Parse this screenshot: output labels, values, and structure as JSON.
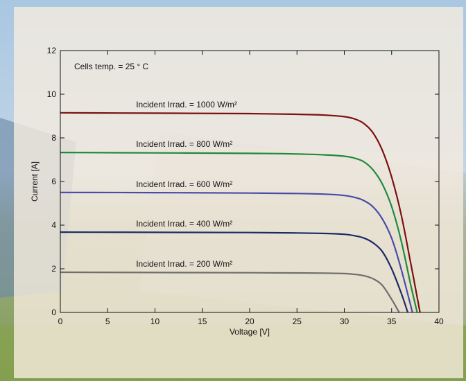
{
  "chart_data": {
    "type": "line",
    "title": "",
    "xlabel": "Voltage [V]",
    "ylabel": "Current [A]",
    "xlim": [
      0,
      40
    ],
    "ylim": [
      0,
      12
    ],
    "xticks": [
      0,
      5,
      10,
      15,
      20,
      25,
      30,
      35,
      40
    ],
    "yticks": [
      0,
      2,
      4,
      6,
      8,
      10,
      12
    ],
    "grid": false,
    "annotation": "Cells temp. = 25 ° C",
    "series": [
      {
        "name": "Incident Irrad. = 1000 W/m²",
        "color": "#7a1010",
        "x": [
          0,
          10,
          20,
          25,
          28,
          30,
          31,
          32,
          33,
          34,
          35,
          36,
          37,
          37.5,
          38
        ],
        "y": [
          9.15,
          9.13,
          9.11,
          9.08,
          9.04,
          8.97,
          8.88,
          8.68,
          8.25,
          7.45,
          6.2,
          4.5,
          2.3,
          1.15,
          0
        ]
      },
      {
        "name": "Incident Irrad. = 800 W/m²",
        "color": "#1e8a3c",
        "x": [
          0,
          10,
          20,
          25,
          28,
          30,
          31,
          32,
          33,
          34,
          35,
          36,
          37,
          37.7
        ],
        "y": [
          7.33,
          7.31,
          7.29,
          7.26,
          7.22,
          7.16,
          7.08,
          6.92,
          6.55,
          5.9,
          4.85,
          3.3,
          1.3,
          0
        ]
      },
      {
        "name": "Incident Irrad. = 600 W/m²",
        "color": "#4a4aa8",
        "x": [
          0,
          10,
          20,
          25,
          28,
          30,
          31,
          32,
          33,
          34,
          35,
          36,
          37.2
        ],
        "y": [
          5.5,
          5.49,
          5.47,
          5.45,
          5.42,
          5.36,
          5.28,
          5.14,
          4.85,
          4.3,
          3.4,
          2.0,
          0
        ]
      },
      {
        "name": "Incident Irrad. = 400 W/m²",
        "color": "#1c2a66",
        "x": [
          0,
          10,
          20,
          25,
          28,
          30,
          31,
          32,
          33,
          34,
          35,
          36,
          36.7
        ],
        "y": [
          3.68,
          3.67,
          3.66,
          3.64,
          3.62,
          3.58,
          3.52,
          3.42,
          3.2,
          2.8,
          2.0,
          0.9,
          0
        ]
      },
      {
        "name": "Incident Irrad. = 200 W/m²",
        "color": "#6e6e6e",
        "x": [
          0,
          10,
          20,
          25,
          28,
          30,
          31,
          32,
          33,
          34,
          35,
          35.8
        ],
        "y": [
          1.84,
          1.83,
          1.82,
          1.81,
          1.8,
          1.78,
          1.75,
          1.69,
          1.55,
          1.25,
          0.6,
          0
        ]
      }
    ]
  }
}
